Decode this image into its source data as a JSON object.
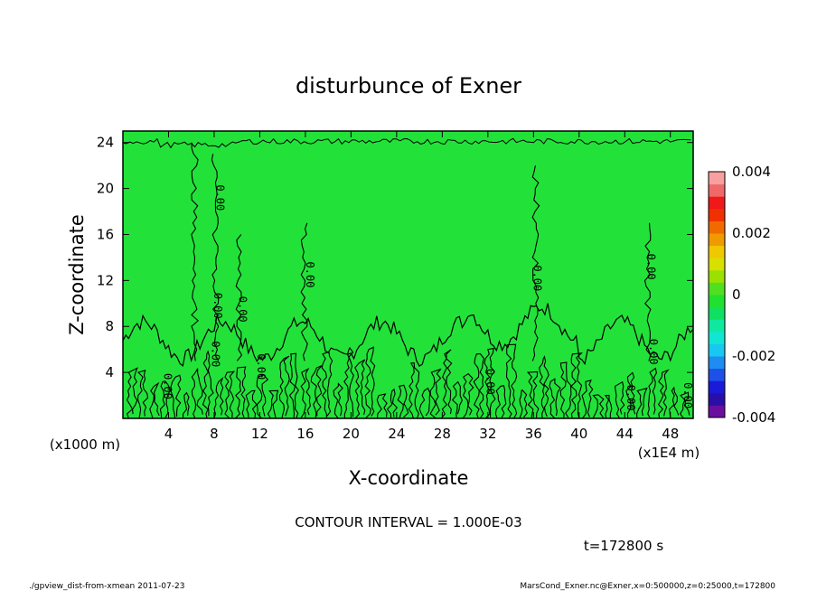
{
  "chart_data": {
    "type": "heatmap",
    "title": "disturbunce of Exner",
    "xlabel": "X-coordinate",
    "ylabel": "Z-coordinate",
    "x_unit_label": "(x1E4 m)",
    "y_unit_label": "(x1000 m)",
    "xlim": [
      0,
      50
    ],
    "ylim": [
      0,
      25
    ],
    "x_ticks": [
      "4",
      "8",
      "12",
      "16",
      "20",
      "24",
      "28",
      "32",
      "36",
      "40",
      "44",
      "48"
    ],
    "x_tick_values": [
      4,
      8,
      12,
      16,
      20,
      24,
      28,
      32,
      36,
      40,
      44,
      48
    ],
    "y_ticks": [
      "4",
      "8",
      "12",
      "16",
      "20",
      "24"
    ],
    "y_tick_values": [
      4,
      8,
      12,
      16,
      20,
      24
    ],
    "colorbar": {
      "range": [
        -0.004,
        0.004
      ],
      "labels": [
        "0.004",
        "0.002",
        "0",
        "-0.002",
        "-0.004"
      ],
      "label_values": [
        0.004,
        0.002,
        0,
        -0.002,
        -0.004
      ],
      "colors": [
        "#6a0ea0",
        "#2a0ea8",
        "#1a1ad8",
        "#1e50e8",
        "#1e8cf0",
        "#18c8f0",
        "#10e6d2",
        "#10e8a0",
        "#10e060",
        "#20e030",
        "#50e020",
        "#9ae000",
        "#d8e000",
        "#f0c800",
        "#f09a00",
        "#f06a00",
        "#f03000",
        "#f01818",
        "#f06868",
        "#f8a0a0"
      ]
    },
    "field_color": "#22e23a",
    "contour_interval_text": "CONTOUR INTERVAL = 1.000E-03",
    "contour_label": "0.00",
    "contour_label_positions": [
      {
        "x": 3.6,
        "z": 2.8
      },
      {
        "x": 8.2,
        "z": 19.2
      },
      {
        "x": 8.0,
        "z": 9.8
      },
      {
        "x": 10.2,
        "z": 9.5
      },
      {
        "x": 7.8,
        "z": 5.6
      },
      {
        "x": 11.8,
        "z": 4.5
      },
      {
        "x": 16.1,
        "z": 12.5
      },
      {
        "x": 31.9,
        "z": 3.2
      },
      {
        "x": 36.0,
        "z": 12.2
      },
      {
        "x": 46.0,
        "z": 13.2
      },
      {
        "x": 44.2,
        "z": 1.8
      },
      {
        "x": 46.2,
        "z": 5.8
      },
      {
        "x": 49.2,
        "z": 2.0
      }
    ]
  },
  "time_label": "t=172800 s",
  "footer_left": "./gpview_dist-from-xmean   2011-07-23",
  "footer_right": "MarsCond_Exner.nc@Exner,x=0:500000,z=0:25000,t=172800"
}
